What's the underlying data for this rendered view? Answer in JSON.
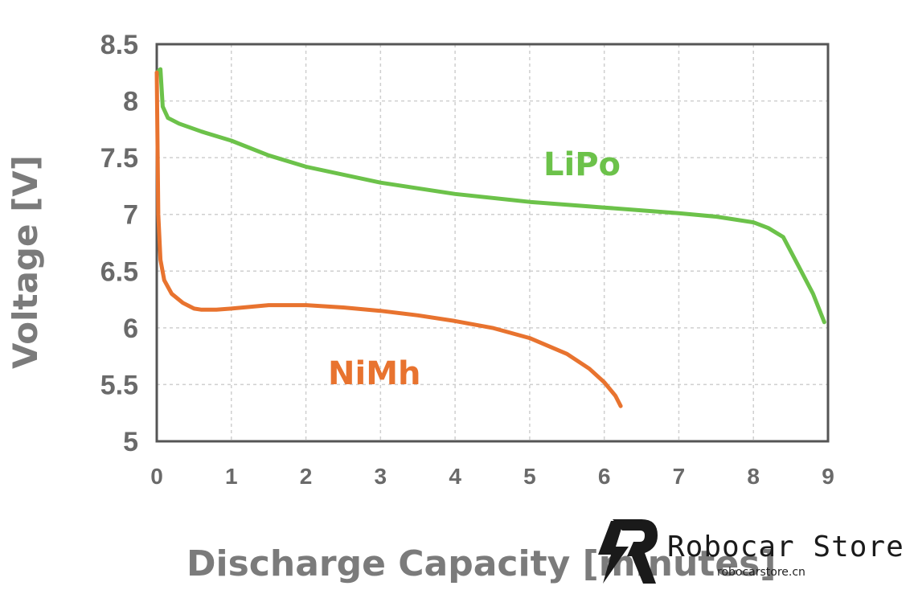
{
  "chart_data": {
    "type": "line",
    "xlabel": "Discharge Capacity [minutes]",
    "ylabel": "Voltage [V]",
    "xlim": [
      0,
      9
    ],
    "ylim": [
      5,
      8.5
    ],
    "x_ticks": [
      "0",
      "1",
      "2",
      "3",
      "4",
      "5",
      "6",
      "7",
      "8",
      "9"
    ],
    "y_ticks": [
      "5",
      "5.5",
      "6",
      "6.5",
      "7",
      "7.5",
      "8",
      "8.5"
    ],
    "grid": true,
    "series": [
      {
        "name": "LiPo",
        "color": "#6cc24a",
        "x": [
          0,
          0.05,
          0.08,
          0.15,
          0.3,
          0.6,
          1.0,
          1.5,
          2.0,
          3.0,
          4.0,
          5.0,
          6.0,
          7.0,
          7.5,
          8.0,
          8.2,
          8.4,
          8.6,
          8.8,
          8.95
        ],
        "y": [
          8.25,
          8.28,
          7.95,
          7.85,
          7.8,
          7.73,
          7.65,
          7.52,
          7.42,
          7.28,
          7.18,
          7.11,
          7.06,
          7.01,
          6.98,
          6.93,
          6.88,
          6.8,
          6.55,
          6.3,
          6.05
        ]
      },
      {
        "name": "NiMh",
        "color": "#e8732f",
        "x": [
          0,
          0.02,
          0.05,
          0.1,
          0.2,
          0.35,
          0.5,
          0.6,
          0.8,
          1.0,
          1.5,
          2.0,
          2.5,
          3.0,
          3.5,
          4.0,
          4.5,
          5.0,
          5.5,
          5.8,
          6.0,
          6.15,
          6.22
        ],
        "y": [
          8.25,
          7.0,
          6.6,
          6.42,
          6.3,
          6.22,
          6.17,
          6.16,
          6.16,
          6.17,
          6.2,
          6.2,
          6.18,
          6.15,
          6.11,
          6.06,
          6.0,
          5.91,
          5.77,
          5.64,
          5.52,
          5.4,
          5.31
        ]
      }
    ]
  },
  "watermark": {
    "name": "Robocar Store",
    "url": "robocarstore.cn"
  }
}
